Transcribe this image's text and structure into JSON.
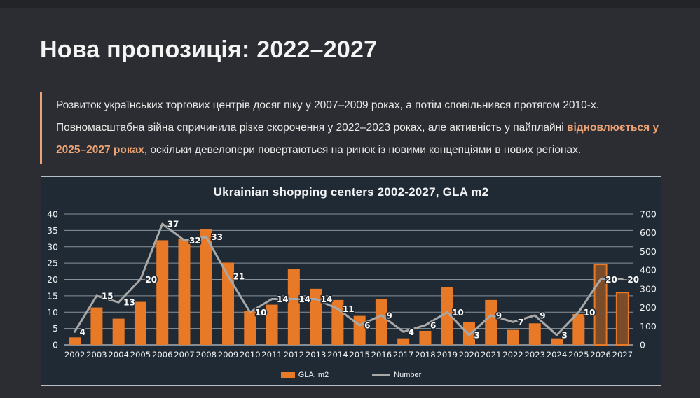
{
  "slide": {
    "title": "Нова пропозиція: 2022–2027"
  },
  "intro": {
    "segments": [
      {
        "text": "Розвиток українських торгових центрів досяг піку у 2007–2009 роках, а потім сповільнився протягом 2010-х. Повномасштабна війна спричинила різке скорочення у 2022–2023 роках, але активність у пайплайні ",
        "bold": false
      },
      {
        "text": "відновлюється у 2025–2027 роках",
        "bold": true
      },
      {
        "text": ", оскільки девелопери повертаються на ринок із новими концепціями в нових регіонах.",
        "bold": false
      }
    ]
  },
  "chart_data": {
    "type": "bar+line",
    "title": "Ukrainian shopping centers 2002-2027, GLA m2",
    "categories": [
      "2002",
      "2003",
      "2004",
      "2005",
      "2006",
      "2007",
      "2008",
      "2009",
      "2010",
      "2011",
      "2012",
      "2013",
      "2014",
      "2015",
      "2016",
      "2017",
      "2018",
      "2019",
      "2020",
      "2021",
      "2022",
      "2023",
      "2024",
      "2025",
      "2026",
      "2027"
    ],
    "series": [
      {
        "name": "GLA, m2",
        "type": "bar",
        "axis": "right",
        "color": "#e87a27",
        "values": [
          40,
          200,
          140,
          230,
          560,
          565,
          620,
          440,
          180,
          215,
          405,
          300,
          240,
          155,
          245,
          35,
          75,
          310,
          120,
          240,
          80,
          115,
          35,
          165,
          430,
          280
        ],
        "forecast_categories": [
          "2026",
          "2027"
        ],
        "forecast_fill": "#7a4c2a"
      },
      {
        "name": "Number",
        "type": "line",
        "axis": "left",
        "color": "#a8a8a8",
        "values": [
          4,
          15,
          13,
          20,
          37,
          32,
          33,
          21,
          10,
          14,
          14,
          14,
          11,
          6,
          9,
          4,
          6,
          10,
          3,
          9,
          7,
          9,
          3,
          10,
          20,
          20
        ],
        "data_labels": true
      }
    ],
    "left_axis": {
      "min": 0,
      "max": 40,
      "step": 5
    },
    "right_axis": {
      "min": 0,
      "max": 700,
      "step": 100
    },
    "grid": true,
    "legend_position": "bottom",
    "colors": {
      "plot_background": "#202a35",
      "gridline": "#a2adb8",
      "axis_label": "#eef1f3",
      "data_label": "#ffffff"
    }
  }
}
